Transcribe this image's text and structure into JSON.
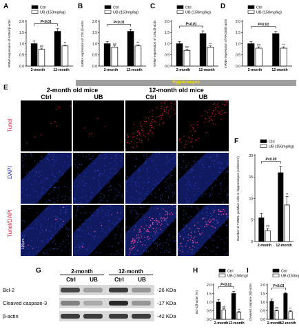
{
  "panels": {
    "A": "A",
    "B": "B",
    "C": "C",
    "D": "D",
    "E": "E",
    "F": "F",
    "G": "G",
    "H": "H",
    "I": "I"
  },
  "legend": {
    "ctrl": "Ctrl",
    "ub": "UB (150mg/kg)"
  },
  "colors": {
    "ctrl_bar": "#000000",
    "ub_bar": "#ffffff",
    "tunel": "#d41a3a",
    "dapi": "#1d2fb0",
    "header_text": "#f7e300"
  },
  "chart_data": [
    {
      "id": "A",
      "type": "bar",
      "categories": [
        "2-month",
        "12-month"
      ],
      "series": [
        {
          "name": "Ctrl",
          "values": [
            1.0,
            1.55
          ],
          "errors": [
            0.12,
            0.12
          ]
        },
        {
          "name": "UB (150mg/kg)",
          "values": [
            0.75,
            0.9
          ],
          "errors": [
            0.05,
            0.04
          ]
        }
      ],
      "ylabel": "mRNA expression of AGEs/β-actin",
      "ylim": [
        0,
        2.0
      ],
      "yticks": [
        "0.0",
        "0.5",
        "1.0",
        "1.5",
        "2.0"
      ],
      "significance": "P<0.01",
      "marks": [
        "##",
        "**"
      ]
    },
    {
      "id": "B",
      "type": "bar",
      "categories": [
        "2-month",
        "12-month"
      ],
      "series": [
        {
          "name": "Ctrl",
          "values": [
            1.0,
            1.55
          ],
          "errors": [
            0.1,
            0.1
          ]
        },
        {
          "name": "UB (150mg/kg)",
          "values": [
            0.85,
            0.9
          ],
          "errors": [
            0.05,
            0.05
          ]
        }
      ],
      "ylabel": "mRNA expression of CEL/β-actin",
      "ylim": [
        0,
        2.0
      ],
      "yticks": [
        "0.0",
        "0.5",
        "1.0",
        "1.5",
        "2.0"
      ],
      "significance": "P<0.01",
      "marks": [
        "##",
        "**"
      ]
    },
    {
      "id": "C",
      "type": "bar",
      "categories": [
        "2-month",
        "12-month"
      ],
      "series": [
        {
          "name": "Ctrl",
          "values": [
            1.0,
            1.45
          ],
          "errors": [
            0.1,
            0.12
          ]
        },
        {
          "name": "UB (150mg/kg)",
          "values": [
            0.7,
            0.85
          ],
          "errors": [
            0.05,
            0.05
          ]
        }
      ],
      "ylabel": "mRNA expression of CML/β-actin",
      "ylim": [
        0,
        2.0
      ],
      "yticks": [
        "0.0",
        "0.5",
        "1.0",
        "1.5",
        "2.0"
      ],
      "significance": "P<0.01",
      "marks": [
        "##",
        "**"
      ]
    },
    {
      "id": "D",
      "type": "bar",
      "categories": [
        "2-month",
        "12-month"
      ],
      "series": [
        {
          "name": "Ctrl",
          "values": [
            1.0,
            1.45
          ],
          "errors": [
            0.1,
            0.1
          ]
        },
        {
          "name": "UB (150mg/kg)",
          "values": [
            0.8,
            0.8
          ],
          "errors": [
            0.06,
            0.06
          ]
        }
      ],
      "ylabel": "mRNA expression of RAGE/β-actin",
      "ylim": [
        0,
        2.0
      ],
      "yticks": [
        "0.0",
        "0.5",
        "1.0",
        "1.5",
        "2.0"
      ],
      "significance": "P<0.01",
      "marks": [
        "##",
        "**"
      ]
    },
    {
      "id": "F",
      "type": "bar",
      "categories": [
        "2-month",
        "12-month"
      ],
      "series": [
        {
          "name": "Ctrl",
          "values": [
            5.5,
            16
          ],
          "errors": [
            1.0,
            1.5
          ]
        },
        {
          "name": "UB (150mg/kg)",
          "values": [
            2.5,
            8.5
          ],
          "errors": [
            0.6,
            2.0
          ]
        }
      ],
      "ylabel": "Number of TUNEL-positive cells in hippocampus (cells/mm²)",
      "ylim": [
        0,
        20
      ],
      "yticks": [
        "0",
        "5",
        "10",
        "15",
        "20"
      ],
      "significance": "P<0.05",
      "marks": [
        "##",
        "**"
      ]
    },
    {
      "id": "H",
      "type": "bar",
      "categories": [
        "2-month",
        "12-month"
      ],
      "series": [
        {
          "name": "Ctrl",
          "values": [
            1.0,
            1.5
          ],
          "errors": [
            0.15,
            0.12
          ]
        },
        {
          "name": "UB (150mg/kg)",
          "values": [
            0.55,
            0.4
          ],
          "errors": [
            0.06,
            0.05
          ]
        }
      ],
      "ylabel": "Bcl-2/β-actin (%)",
      "ylim": [
        0,
        2.0
      ],
      "yticks": [
        "0.0",
        "0.5",
        "1.0",
        "1.5",
        "2.0"
      ],
      "significance": "P<0.01",
      "marks": [
        "##",
        "**"
      ]
    },
    {
      "id": "I",
      "type": "bar",
      "categories": [
        "2-month",
        "12-month"
      ],
      "series": [
        {
          "name": "Ctrl",
          "values": [
            1.05,
            1.5
          ],
          "errors": [
            0.12,
            0.05
          ]
        },
        {
          "name": "UB (150mg/kg)",
          "values": [
            0.5,
            0.45
          ],
          "errors": [
            0.05,
            0.05
          ]
        }
      ],
      "ylabel": "Cleaved caspase 3/β-actin",
      "ylim": [
        0,
        2.0
      ],
      "yticks": [
        "0.0",
        "0.5",
        "1.0",
        "1.5",
        "2.0"
      ],
      "significance": "P<0.01",
      "marks": [
        "##",
        "**"
      ]
    }
  ],
  "micrographs": {
    "header": "Hippocampus",
    "groups": [
      "2-month old mice",
      "12-month old mice"
    ],
    "columns": [
      "Ctrl",
      "UB",
      "Ctrl",
      "UB"
    ],
    "rows": [
      "Tunel",
      "DAPI",
      "Tunel/DAPI"
    ],
    "scale": "100µm",
    "tunel_density": [
      0.05,
      0.02,
      0.9,
      0.55
    ]
  },
  "western": {
    "groups": [
      "2-month",
      "12-month"
    ],
    "columns": [
      "Ctrl",
      "UB",
      "Ctrl",
      "UB"
    ],
    "rows": [
      {
        "label": "Bcl-2",
        "kda": "-26 KDa",
        "intensity": [
          0.7,
          0.25,
          0.75,
          0.3
        ]
      },
      {
        "label": "Cleaved caspase-3",
        "kda": "-17 KDa",
        "intensity": [
          0.4,
          0.2,
          0.85,
          0.3
        ]
      },
      {
        "label": "β-actin",
        "kda": "-42 KDa",
        "intensity": [
          0.75,
          0.75,
          0.75,
          0.75
        ]
      }
    ]
  }
}
